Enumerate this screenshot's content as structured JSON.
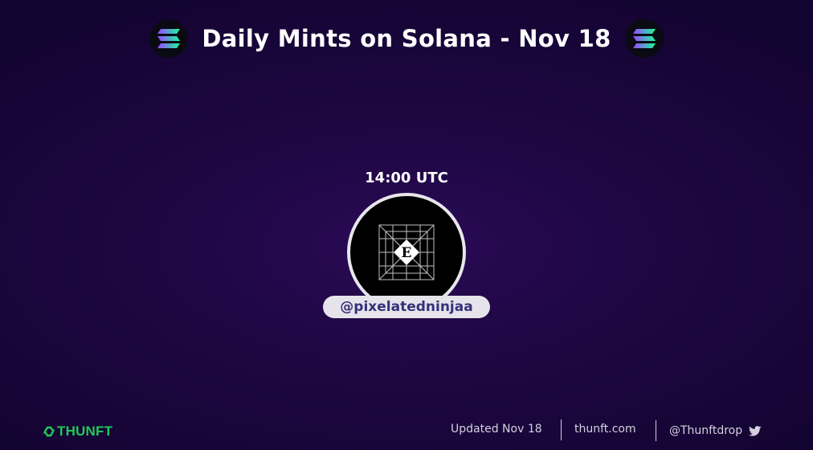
{
  "header": {
    "title": "Daily Mints on Solana - Nov 18",
    "logo_left_icon": "solana-logo-icon",
    "logo_right_icon": "solana-logo-icon"
  },
  "mint": {
    "time": "14:00 UTC",
    "avatar_letter": "E",
    "avatar_icon": "project-avatar",
    "handle": "@pixelatedninjaa"
  },
  "footer": {
    "brand": "THUNFT",
    "updated": "Updated Nov 18",
    "website": "thunft.com",
    "twitter": "@Thunftdrop",
    "twitter_icon": "twitter-icon"
  },
  "colors": {
    "background": "#1d0742",
    "brand_green": "#22c95a",
    "handle_text": "#36307a",
    "pill_bg": "#e6e4ea"
  }
}
